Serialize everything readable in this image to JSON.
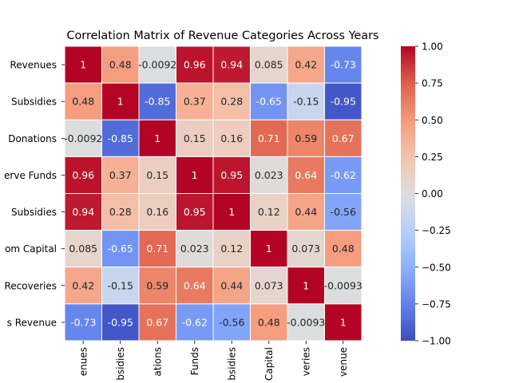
{
  "chart_data": {
    "type": "heatmap",
    "title": "Correlation Matrix of Revenue Categories Across Years",
    "row_labels": [
      "Revenues",
      "Subsidies",
      "Donations",
      "erve Funds",
      "Subsidies",
      "om Capital",
      "Recoveries",
      "s Revenue"
    ],
    "column_labels": [
      "enues",
      "bsidies",
      "ations",
      "Funds",
      "bsidies",
      "Capital",
      "veries",
      "venue"
    ],
    "values": [
      [
        1,
        0.48,
        -0.0092,
        0.96,
        0.94,
        0.085,
        0.42,
        -0.73
      ],
      [
        0.48,
        1,
        -0.85,
        0.37,
        0.28,
        -0.65,
        -0.15,
        -0.95
      ],
      [
        -0.0092,
        -0.85,
        1,
        0.15,
        0.16,
        0.71,
        0.59,
        0.67
      ],
      [
        0.96,
        0.37,
        0.15,
        1,
        0.95,
        0.023,
        0.64,
        -0.62
      ],
      [
        0.94,
        0.28,
        0.16,
        0.95,
        1,
        0.12,
        0.44,
        -0.56
      ],
      [
        0.085,
        -0.65,
        0.71,
        0.023,
        0.12,
        1,
        0.073,
        0.48
      ],
      [
        0.42,
        -0.15,
        0.59,
        0.64,
        0.44,
        0.073,
        1,
        -0.0093
      ],
      [
        -0.73,
        -0.95,
        0.67,
        -0.62,
        -0.56,
        0.48,
        -0.0093,
        1
      ]
    ],
    "colormap": "coolwarm",
    "vmin": -1,
    "vmax": 1,
    "colorbar_ticks": [
      "1.00",
      "0.75",
      "0.50",
      "0.25",
      "0.00",
      "−0.25",
      "−0.50",
      "−0.75",
      "−1.00"
    ],
    "annotations": true,
    "grid_lines": "white"
  }
}
